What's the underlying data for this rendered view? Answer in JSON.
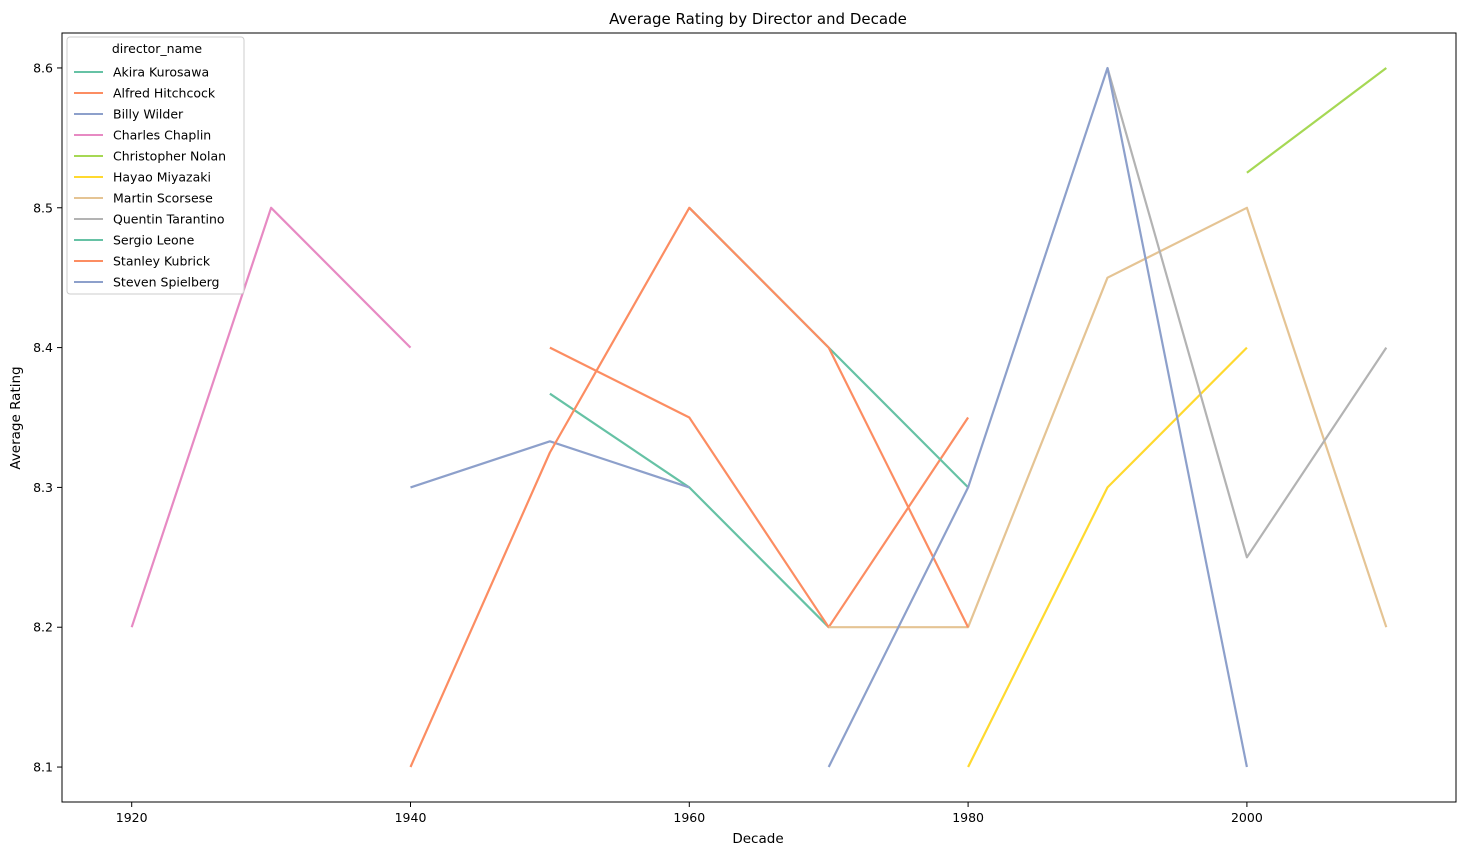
{
  "chart_data": {
    "type": "line",
    "title": "Average Rating by Director and Decade",
    "xlabel": "Decade",
    "ylabel": "Average Rating",
    "xlim": [
      1915,
      2015
    ],
    "ylim": [
      8.075,
      8.625
    ],
    "x_ticks": [
      "1920",
      "1940",
      "1960",
      "1980",
      "2000"
    ],
    "y_ticks": [
      "8.1",
      "8.2",
      "8.3",
      "8.4",
      "8.5",
      "8.6"
    ],
    "grid": false,
    "legend_title": "director_name",
    "legend_position": "top-left",
    "series": [
      {
        "name": "Akira Kurosawa",
        "color": "#66c2a5",
        "points": [
          [
            1950,
            8.367
          ],
          [
            1960,
            8.3
          ],
          [
            1970,
            8.2
          ]
        ]
      },
      {
        "name": "Alfred Hitchcock",
        "color": "#fc8d62",
        "points": [
          [
            1950,
            8.4
          ],
          [
            1960,
            8.35
          ],
          [
            1970,
            8.2
          ],
          [
            1980,
            8.35
          ]
        ]
      },
      {
        "name": "Billy Wilder",
        "color": "#8da0cb",
        "points": [
          [
            1940,
            8.3
          ],
          [
            1950,
            8.333
          ],
          [
            1960,
            8.3
          ]
        ]
      },
      {
        "name": "Charles Chaplin",
        "color": "#e78ac3",
        "points": [
          [
            1920,
            8.2
          ],
          [
            1930,
            8.5
          ],
          [
            1940,
            8.4
          ]
        ]
      },
      {
        "name": "Christopher Nolan",
        "color": "#a6d854",
        "points": [
          [
            2000,
            8.525
          ],
          [
            2010,
            8.6
          ]
        ]
      },
      {
        "name": "Hayao Miyazaki",
        "color": "#ffd92f",
        "points": [
          [
            1980,
            8.1
          ],
          [
            1990,
            8.3
          ],
          [
            2000,
            8.4
          ]
        ]
      },
      {
        "name": "Martin Scorsese",
        "color": "#e5c494",
        "points": [
          [
            1970,
            8.2
          ],
          [
            1980,
            8.2
          ],
          [
            1990,
            8.45
          ],
          [
            2000,
            8.5
          ],
          [
            2010,
            8.2
          ]
        ]
      },
      {
        "name": "Quentin Tarantino",
        "color": "#b3b3b3",
        "points": [
          [
            1990,
            8.6
          ],
          [
            2000,
            8.25
          ],
          [
            2010,
            8.4
          ]
        ]
      },
      {
        "name": "Sergio Leone",
        "color": "#66c2a5",
        "points": [
          [
            1960,
            8.5
          ],
          [
            1970,
            8.4
          ],
          [
            1980,
            8.3
          ]
        ]
      },
      {
        "name": "Stanley Kubrick",
        "color": "#fc8d62",
        "points": [
          [
            1940,
            8.1
          ],
          [
            1950,
            8.325
          ],
          [
            1960,
            8.5
          ],
          [
            1970,
            8.4
          ],
          [
            1980,
            8.2
          ]
        ]
      },
      {
        "name": "Steven Spielberg",
        "color": "#8da0cb",
        "points": [
          [
            1970,
            8.1
          ],
          [
            1980,
            8.3
          ],
          [
            1990,
            8.6
          ],
          [
            2000,
            8.1
          ]
        ]
      }
    ]
  }
}
